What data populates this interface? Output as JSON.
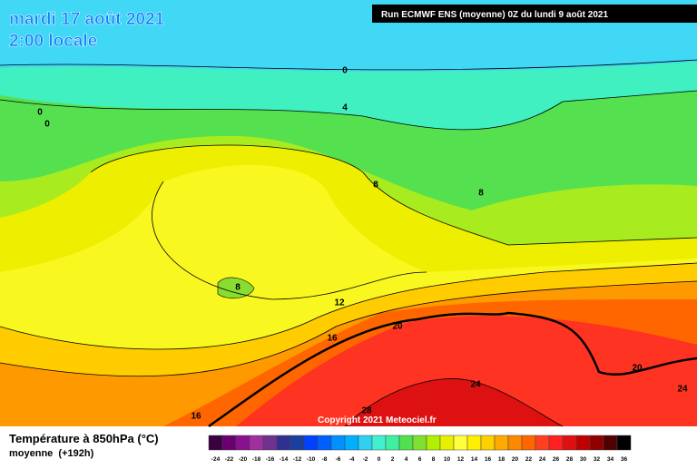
{
  "header": {
    "date": "mardi 17 août 2021",
    "time": "2:00 locale",
    "run": "Run ECMWF ENS (moyenne) 0Z du lundi 9 août 2021"
  },
  "map": {
    "contour_labels": [
      0,
      0,
      0,
      4,
      8,
      8,
      8,
      12,
      16,
      16,
      20,
      20,
      24,
      24,
      28
    ],
    "copyright": "Copyright 2021 Meteociel.fr"
  },
  "footer": {
    "title": "Température à 850hPa (°C)",
    "subtitle": "moyenne  (+192h)",
    "scale": {
      "ticks": [
        -24,
        -22,
        -20,
        -18,
        -16,
        -14,
        -12,
        -10,
        -8,
        -6,
        -4,
        -2,
        0,
        2,
        4,
        6,
        8,
        10,
        12,
        14,
        16,
        18,
        20,
        22,
        24,
        26,
        28,
        30,
        32,
        34,
        36
      ],
      "colors": [
        "#3a0040",
        "#6a0070",
        "#8a1090",
        "#a030a0",
        "#703090",
        "#303090",
        "#1a3fa0",
        "#0040ff",
        "#0060ff",
        "#0090ff",
        "#00b0ff",
        "#30d0f0",
        "#40f0d0",
        "#40f0a0",
        "#50e050",
        "#80e030",
        "#b0f000",
        "#e8f000",
        "#ffff40",
        "#fff000",
        "#ffd000",
        "#ffaa00",
        "#ff8800",
        "#ff6600",
        "#ff4020",
        "#ff2020",
        "#e01010",
        "#c00000",
        "#900000",
        "#500000",
        "#000000"
      ]
    }
  }
}
